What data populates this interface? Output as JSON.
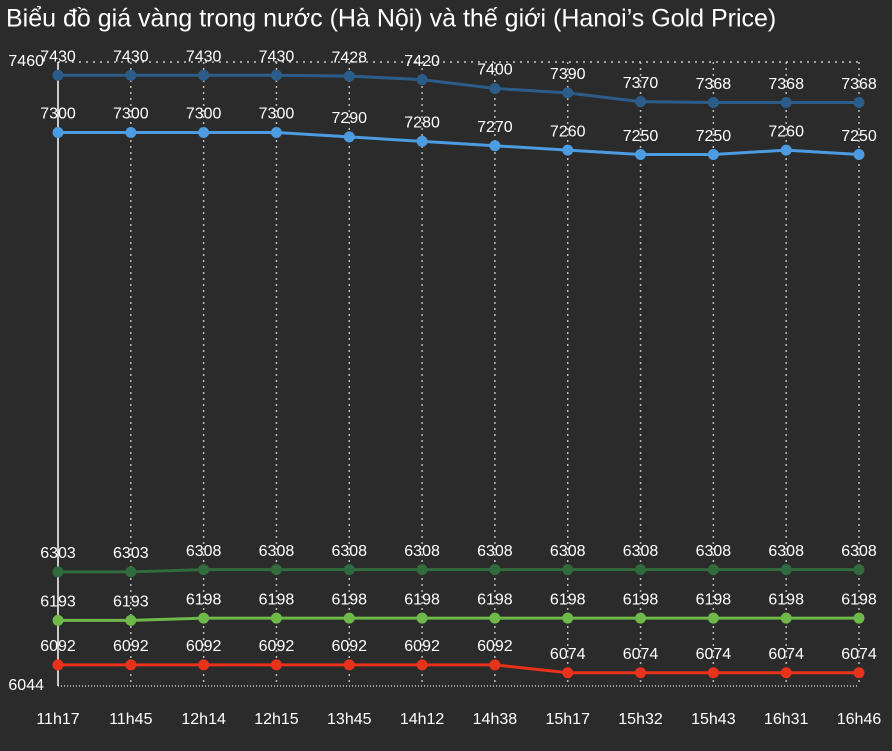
{
  "chart_data": {
    "type": "line",
    "title": "Biểu đồ giá vàng trong nước (Hà Nội) và thế giới (Hanoi’s Gold Price)",
    "categories": [
      "11h17",
      "11h45",
      "12h14",
      "12h15",
      "13h45",
      "14h12",
      "14h38",
      "15h17",
      "15h32",
      "15h43",
      "16h31",
      "16h46"
    ],
    "series": [
      {
        "color": "#2c5d8a",
        "values": [
          7430,
          7430,
          7430,
          7430,
          7428,
          7420,
          7400,
          7390,
          7370,
          7368,
          7368,
          7368
        ]
      },
      {
        "color": "#4d9be0",
        "values": [
          7300,
          7300,
          7300,
          7300,
          7290,
          7280,
          7270,
          7260,
          7250,
          7250,
          7260,
          7250
        ]
      },
      {
        "color": "#2f6b3c",
        "values": [
          6303,
          6303,
          6308,
          6308,
          6308,
          6308,
          6308,
          6308,
          6308,
          6308,
          6308,
          6308
        ]
      },
      {
        "color": "#6fb84a",
        "values": [
          6193,
          6193,
          6198,
          6198,
          6198,
          6198,
          6198,
          6198,
          6198,
          6198,
          6198,
          6198
        ]
      },
      {
        "color": "#e8321c",
        "values": [
          6092,
          6092,
          6092,
          6092,
          6092,
          6092,
          6092,
          6074,
          6074,
          6074,
          6074,
          6074
        ]
      }
    ],
    "ylim": [
      6044,
      7460
    ],
    "yticks": [
      6044,
      7460
    ],
    "grid": true
  }
}
